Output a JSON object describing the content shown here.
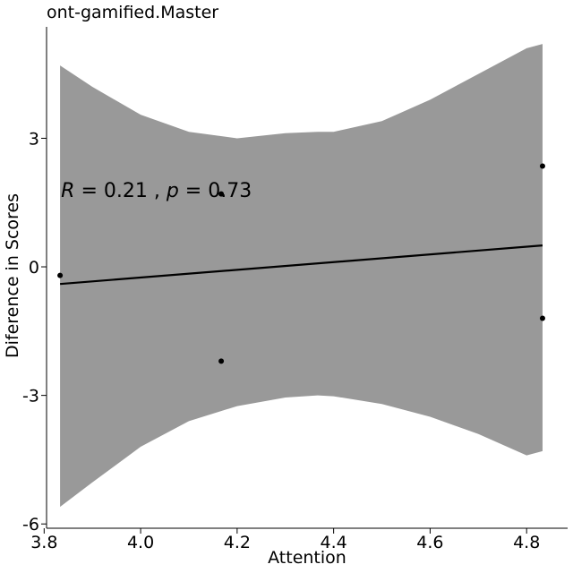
{
  "chart_data": {
    "type": "scatter",
    "title": "ont-gamified.Master",
    "xlabel": "Attention",
    "ylabel": "Diference in Scores",
    "xlim": [
      3.805,
      4.885
    ],
    "ylim": [
      -6.1,
      5.6
    ],
    "x_ticks": [
      3.8,
      4.0,
      4.2,
      4.4,
      4.6,
      4.8
    ],
    "x_tick_labels": [
      "3.8",
      "4.0",
      "4.2",
      "4.4",
      "4.6",
      "4.8"
    ],
    "y_ticks": [
      -6,
      -3,
      0,
      3
    ],
    "y_tick_labels": [
      "-6",
      "-3",
      "0",
      "3"
    ],
    "points": [
      {
        "x": 3.833,
        "y": -0.2
      },
      {
        "x": 4.167,
        "y": 1.7
      },
      {
        "x": 4.167,
        "y": -2.2
      },
      {
        "x": 4.833,
        "y": 2.35
      },
      {
        "x": 4.833,
        "y": -1.2
      }
    ],
    "regression": {
      "x": [
        3.833,
        4.833
      ],
      "y": [
        -0.4,
        0.5
      ]
    },
    "confidence_band": {
      "x": [
        3.833,
        3.9,
        4.0,
        4.1,
        4.2,
        4.3,
        4.367,
        4.4,
        4.5,
        4.6,
        4.7,
        4.8,
        4.833
      ],
      "lower": [
        -5.6,
        -5.03,
        -4.2,
        -3.6,
        -3.25,
        -3.05,
        -3.0,
        -3.02,
        -3.2,
        -3.5,
        -3.9,
        -4.4,
        -4.3
      ],
      "upper": [
        4.7,
        4.2,
        3.55,
        3.15,
        3.0,
        3.12,
        3.15,
        3.15,
        3.4,
        3.9,
        4.5,
        5.1,
        5.2
      ]
    },
    "annotation": {
      "r_symbol": "R",
      "r_part": " = 0.21 , ",
      "p_symbol": "p",
      "p_part": " = 0.73",
      "x": 3.835,
      "y": 1.8
    },
    "colors": {
      "band": "#999999",
      "line": "#000000",
      "points": "#000000"
    },
    "grid": false,
    "legend": "none"
  }
}
